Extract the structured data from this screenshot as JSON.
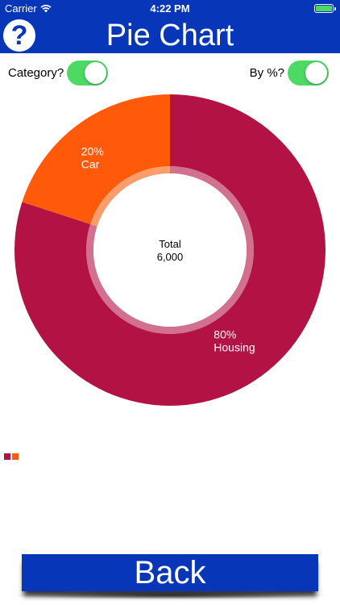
{
  "status_bar": {
    "carrier": "Carrier",
    "time": "4:22 PM",
    "wifi_icon": "wifi-icon",
    "battery_icon": "battery-icon"
  },
  "header": {
    "title": "Pie Chart",
    "help_label": "?",
    "background_color": "#0836b8"
  },
  "toggles": {
    "category": {
      "label": "Category?",
      "on": true
    },
    "by_percent": {
      "label": "By %?",
      "on": true
    }
  },
  "chart_data": {
    "type": "pie",
    "categories": [
      "Car",
      "Housing"
    ],
    "values": [
      20,
      80
    ],
    "value_labels": [
      "20%",
      "80%"
    ],
    "colors": [
      "#ff5a0a",
      "#b31245"
    ],
    "center_label": "Total",
    "center_value": "6,000"
  },
  "footer": {
    "back_label": "Back"
  }
}
